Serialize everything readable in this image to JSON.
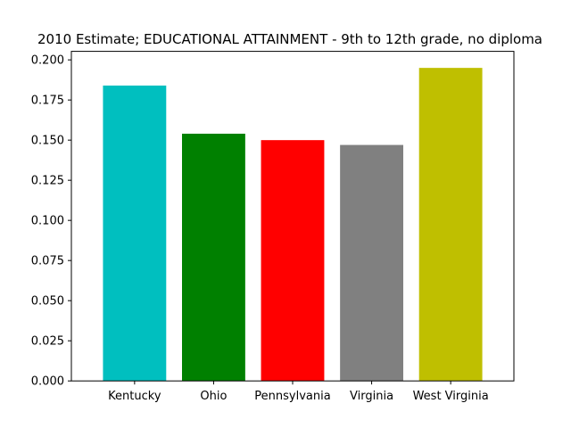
{
  "chart_data": {
    "type": "bar",
    "title": "2010 Estimate; EDUCATIONAL ATTAINMENT - 9th to 12th grade, no diploma",
    "xlabel": "",
    "ylabel": "",
    "categories": [
      "Kentucky",
      "Ohio",
      "Pennsylvania",
      "Virginia",
      "West Virginia"
    ],
    "values": [
      0.184,
      0.154,
      0.15,
      0.147,
      0.195
    ],
    "colors": [
      "#00bfbf",
      "#008000",
      "#ff0000",
      "#808080",
      "#bfbf00"
    ],
    "ylim": [
      0,
      0.2053
    ],
    "yticks": [
      "0.000",
      "0.025",
      "0.050",
      "0.075",
      "0.100",
      "0.125",
      "0.150",
      "0.175",
      "0.200"
    ],
    "grid": false,
    "legend": "none"
  }
}
